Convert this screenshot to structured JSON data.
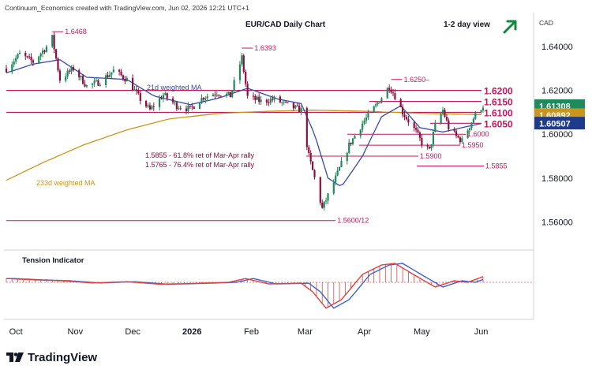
{
  "header": {
    "source": "Continuum_Economics created with TradingView.com, Jun 02, 2026 12:21 UTC+1",
    "title": "EUR/CAD Daily Chart",
    "view": "1-2 day view",
    "currency": "CAD"
  },
  "branding": {
    "logo_text": "TradingView"
  },
  "colors": {
    "up": "#1f8a5b",
    "down": "#8b1040",
    "level": "#c2185b",
    "ma21": "#3949ab",
    "ma233": "#c8961e",
    "arrow": "#0f8a3c",
    "osc_up": "#e04040",
    "osc_down": "#4060d0"
  },
  "labels": {
    "ma21": "21d weighted MA",
    "ma233": "233d weighted MA",
    "fib1": "1.5855 - 61.8% ret of Mar-Apr rally",
    "fib2": "1.5765 - 76.4% ret of Mar-Apr rally",
    "indicator": "Tension Indicator"
  },
  "chart_data": {
    "type": "candlestick",
    "x_ticks": [
      "Oct",
      "Nov",
      "Dec",
      "2026",
      "Feb",
      "Mar",
      "Apr",
      "May",
      "Jun"
    ],
    "y_ticks": [
      "1.64000",
      "1.62000",
      "1.60000",
      "1.58000",
      "1.56000"
    ],
    "ylim": [
      1.5515,
      1.6555
    ],
    "price_tags": [
      {
        "value": "1.61308",
        "bg": "#1f8a5b"
      },
      {
        "value": "1.60892",
        "bg": "#c8961e"
      },
      {
        "value": "1.60507",
        "bg": "#1e3a8a"
      }
    ],
    "annotations": [
      {
        "text": "1.6468",
        "date": "2025-10-20",
        "price": 1.6468,
        "style": "peak"
      },
      {
        "text": "1.6393",
        "date": "2026-01-27",
        "price": 1.6393,
        "style": "peak"
      },
      {
        "text": "1.6250–",
        "date": "2026-04-15",
        "price": 1.625,
        "style": "peak"
      },
      {
        "text": "1.5600/12",
        "date": "2026-03-10",
        "price": 1.5606,
        "style": "trough"
      },
      {
        "text": "1.6200",
        "price": 1.62,
        "style": "bold"
      },
      {
        "text": "1.6150",
        "price": 1.615,
        "style": "bold"
      },
      {
        "text": "1.6100",
        "price": 1.61,
        "style": "bold"
      },
      {
        "text": "1.6050",
        "price": 1.605,
        "style": "bold"
      },
      {
        "text": "1.6000",
        "price": 1.6,
        "style": "small"
      },
      {
        "text": "1.5950",
        "price": 1.595,
        "style": "small"
      },
      {
        "text": "1.5900",
        "price": 1.59,
        "style": "small"
      },
      {
        "text": "1.5855",
        "price": 1.5855,
        "style": "small"
      }
    ],
    "series": [
      {
        "name": "EUR/CAD",
        "type": "candlestick",
        "key_points": [
          [
            "2025-09-26",
            1.63
          ],
          [
            "2025-10-03",
            1.6365
          ],
          [
            "2025-10-10",
            1.633
          ],
          [
            "2025-10-17",
            1.64
          ],
          [
            "2025-10-20",
            1.644
          ],
          [
            "2025-10-24",
            1.625
          ],
          [
            "2025-10-31",
            1.63
          ],
          [
            "2025-11-07",
            1.622
          ],
          [
            "2025-11-14",
            1.624
          ],
          [
            "2025-11-21",
            1.629
          ],
          [
            "2025-11-28",
            1.625
          ],
          [
            "2025-12-05",
            1.616
          ],
          [
            "2025-12-10",
            1.611
          ],
          [
            "2025-12-17",
            1.618
          ],
          [
            "2025-12-24",
            1.613
          ],
          [
            "2025-12-31",
            1.6115
          ],
          [
            "2026-01-07",
            1.617
          ],
          [
            "2026-01-14",
            1.619
          ],
          [
            "2026-01-21",
            1.6175
          ],
          [
            "2026-01-27",
            1.635
          ],
          [
            "2026-01-30",
            1.617
          ],
          [
            "2026-02-06",
            1.615
          ],
          [
            "2026-02-13",
            1.616
          ],
          [
            "2026-02-20",
            1.613
          ],
          [
            "2026-02-27",
            1.611
          ],
          [
            "2026-03-03",
            1.59
          ],
          [
            "2026-03-06",
            1.58
          ],
          [
            "2026-03-10",
            1.566
          ],
          [
            "2026-03-13",
            1.572
          ],
          [
            "2026-03-17",
            1.58
          ],
          [
            "2026-03-24",
            1.595
          ],
          [
            "2026-03-31",
            1.605
          ],
          [
            "2026-04-07",
            1.613
          ],
          [
            "2026-04-14",
            1.622
          ],
          [
            "2026-04-17",
            1.6175
          ],
          [
            "2026-04-21",
            1.61
          ],
          [
            "2026-04-28",
            1.601
          ],
          [
            "2026-05-01",
            1.596
          ],
          [
            "2026-05-05",
            1.5925
          ],
          [
            "2026-05-08",
            1.604
          ],
          [
            "2026-05-12",
            1.611
          ],
          [
            "2026-05-15",
            1.603
          ],
          [
            "2026-05-19",
            1.599
          ],
          [
            "2026-05-22",
            1.597
          ],
          [
            "2026-05-26",
            1.604
          ],
          [
            "2026-05-29",
            1.609
          ],
          [
            "2026-06-02",
            1.6131
          ]
        ]
      },
      {
        "name": "21d weighted MA",
        "type": "line",
        "key_points": [
          [
            "2025-09-26",
            1.628
          ],
          [
            "2025-10-10",
            1.632
          ],
          [
            "2025-10-24",
            1.634
          ],
          [
            "2025-11-07",
            1.626
          ],
          [
            "2025-11-28",
            1.625
          ],
          [
            "2025-12-12",
            1.6175
          ],
          [
            "2025-12-31",
            1.6135
          ],
          [
            "2026-01-15",
            1.6165
          ],
          [
            "2026-01-30",
            1.621
          ],
          [
            "2026-02-15",
            1.616
          ],
          [
            "2026-02-27",
            1.614
          ],
          [
            "2026-03-06",
            1.6
          ],
          [
            "2026-03-13",
            1.58
          ],
          [
            "2026-03-20",
            1.576
          ],
          [
            "2026-03-31",
            1.59
          ],
          [
            "2026-04-10",
            1.608
          ],
          [
            "2026-04-20",
            1.613
          ],
          [
            "2026-04-30",
            1.603
          ],
          [
            "2026-05-12",
            1.601
          ],
          [
            "2026-05-22",
            1.603
          ],
          [
            "2026-06-02",
            1.6051
          ]
        ]
      },
      {
        "name": "233d weighted MA",
        "type": "line",
        "key_points": [
          [
            "2025-09-26",
            1.579
          ],
          [
            "2025-10-15",
            1.587
          ],
          [
            "2025-11-05",
            1.595
          ],
          [
            "2025-11-28",
            1.602
          ],
          [
            "2025-12-20",
            1.607
          ],
          [
            "2026-01-15",
            1.6095
          ],
          [
            "2026-02-10",
            1.6105
          ],
          [
            "2026-03-05",
            1.611
          ],
          [
            "2026-04-01",
            1.6105
          ],
          [
            "2026-05-01",
            1.6095
          ],
          [
            "2026-06-02",
            1.6089
          ]
        ]
      },
      {
        "name": "Tension Indicator",
        "type": "oscillator",
        "key_points": [
          [
            "2025-09-26",
            0.12
          ],
          [
            "2025-10-10",
            0.08
          ],
          [
            "2025-10-25",
            0.05
          ],
          [
            "2025-11-10",
            -0.02
          ],
          [
            "2025-11-28",
            0.02
          ],
          [
            "2025-12-15",
            -0.06
          ],
          [
            "2025-12-31",
            -0.04
          ],
          [
            "2026-01-20",
            0.0
          ],
          [
            "2026-01-29",
            0.12
          ],
          [
            "2026-02-10",
            -0.05
          ],
          [
            "2026-02-27",
            -0.03
          ],
          [
            "2026-03-05",
            -0.3
          ],
          [
            "2026-03-12",
            -0.82
          ],
          [
            "2026-03-20",
            -0.55
          ],
          [
            "2026-03-31",
            0.25
          ],
          [
            "2026-04-10",
            0.55
          ],
          [
            "2026-04-17",
            0.6
          ],
          [
            "2026-04-28",
            0.2
          ],
          [
            "2026-05-08",
            -0.15
          ],
          [
            "2026-05-18",
            0.05
          ],
          [
            "2026-05-25",
            0.0
          ],
          [
            "2026-06-02",
            0.18
          ]
        ]
      }
    ]
  }
}
